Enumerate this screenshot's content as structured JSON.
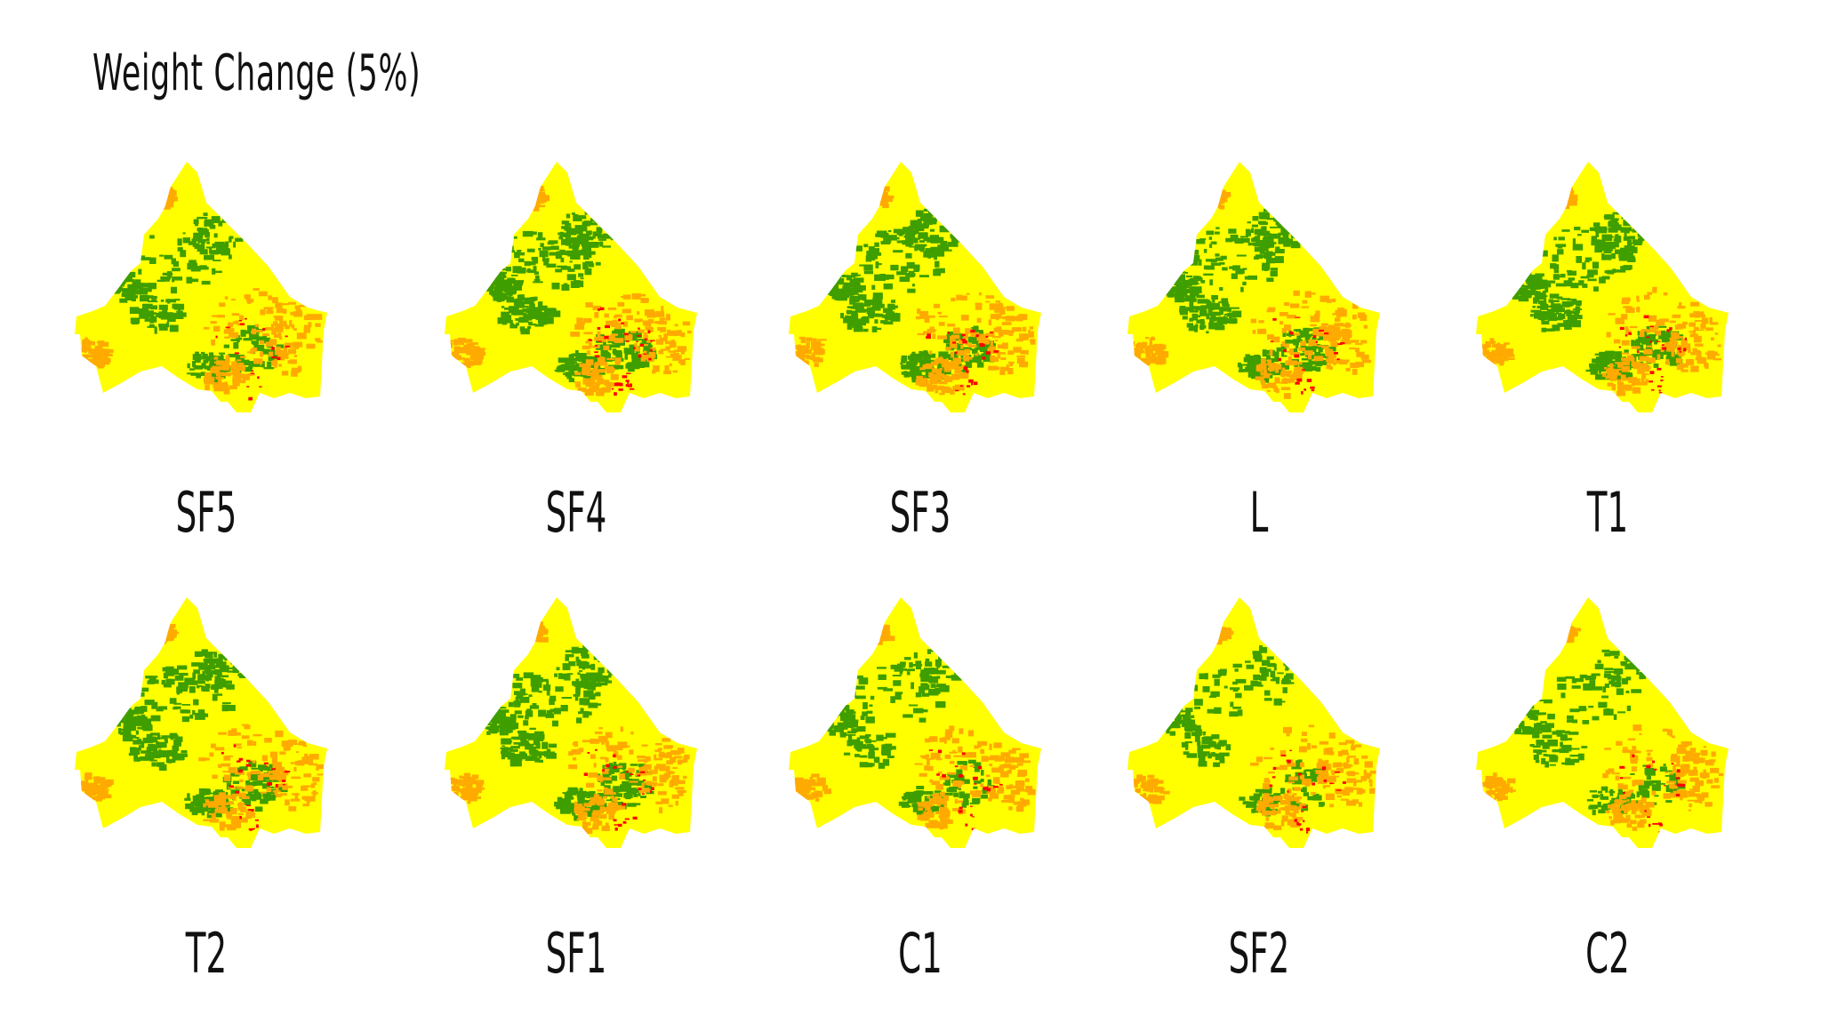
{
  "title": "Weight Change (5%)",
  "legend_colors": {
    "low": "#3f9e00",
    "moderate": "#ffff00",
    "high": "#ffaa00",
    "very_high": "#ff0000"
  },
  "maps": [
    {
      "label": "SF5"
    },
    {
      "label": "SF4"
    },
    {
      "label": "SF3"
    },
    {
      "label": "L"
    },
    {
      "label": "T1"
    },
    {
      "label": "T2"
    },
    {
      "label": "SF1"
    },
    {
      "label": "C1"
    },
    {
      "label": "SF2"
    },
    {
      "label": "C2"
    }
  ]
}
